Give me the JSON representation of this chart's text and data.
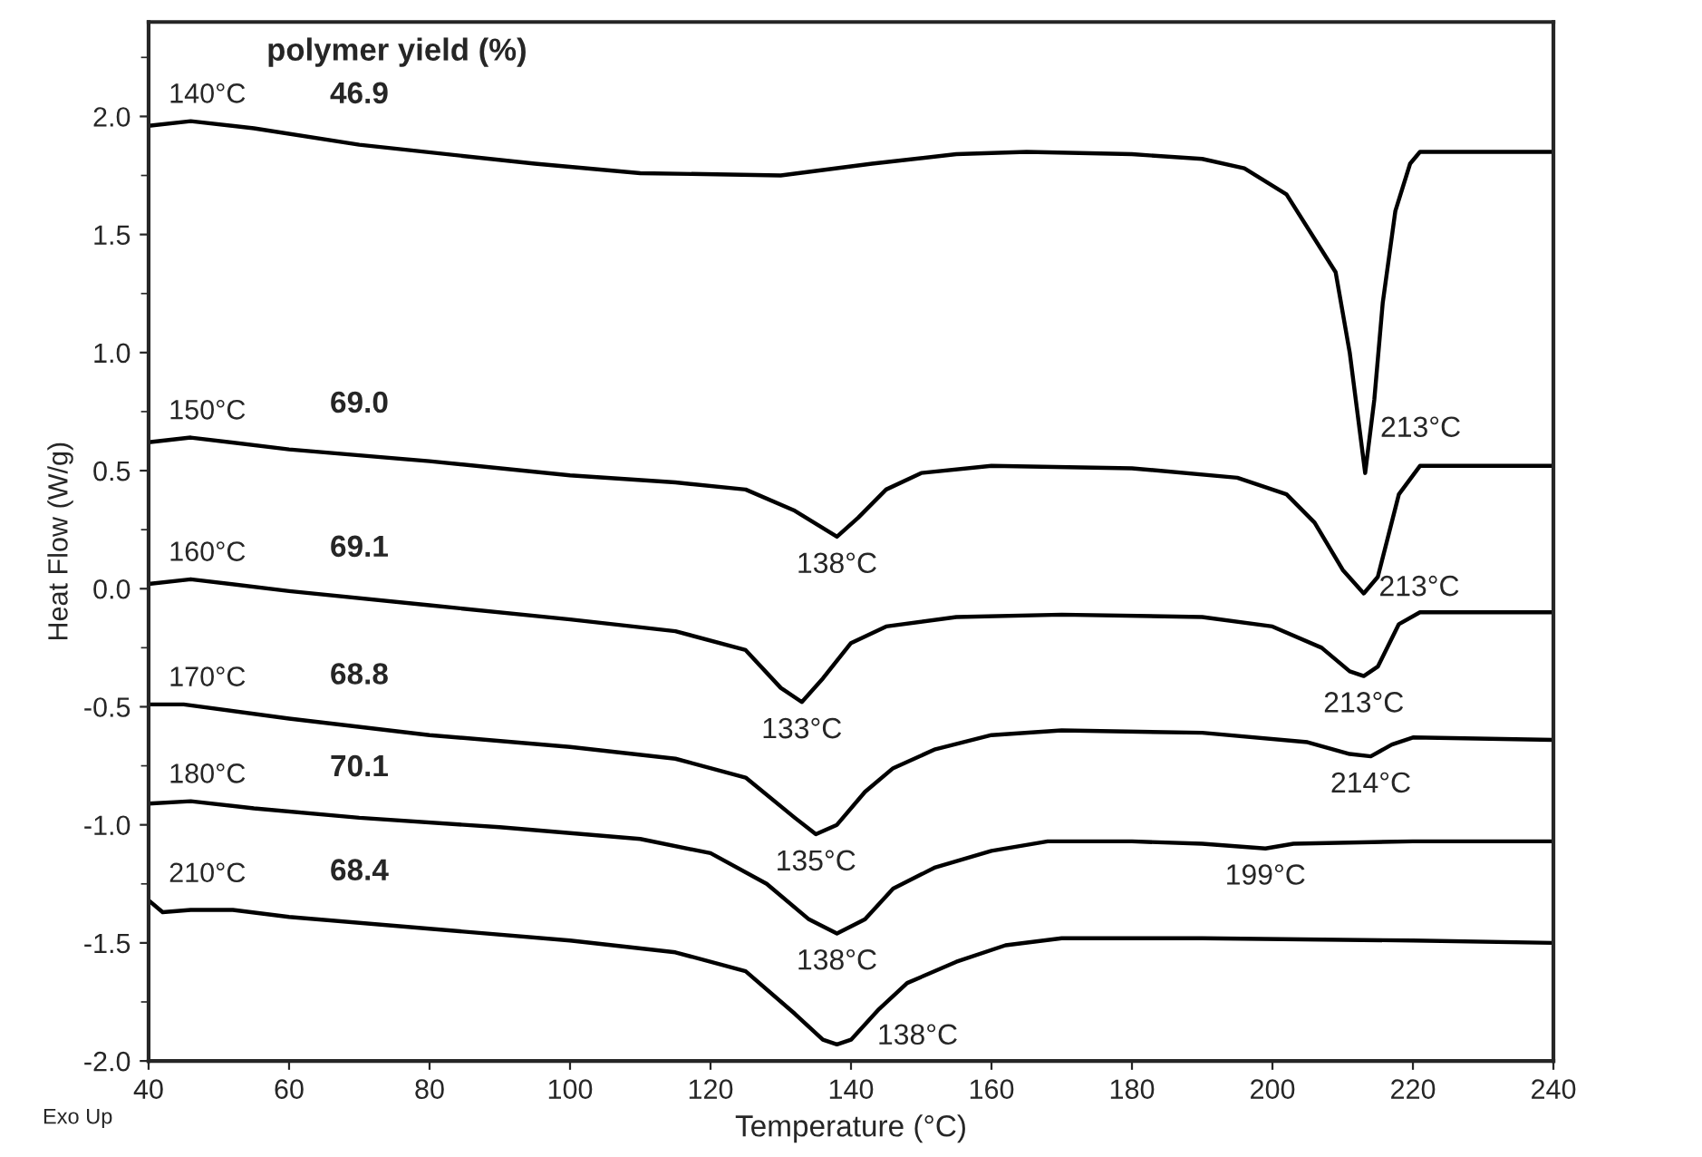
{
  "chart_data": {
    "type": "line",
    "xlabel": "Temperature (°C)",
    "ylabel": "Heat Flow (W/g)",
    "xlim": [
      40,
      240
    ],
    "xticks": [
      40,
      60,
      80,
      100,
      120,
      140,
      160,
      180,
      200,
      220,
      240
    ],
    "ylim": [
      -2.0,
      2.4
    ],
    "yticks": [
      {
        "value": -2.0,
        "label": "-2.0"
      },
      {
        "value": -1.5,
        "label": "-1.5"
      },
      {
        "value": -1.0,
        "label": "-1.0"
      },
      {
        "value": -0.5,
        "label": "-0.5"
      },
      {
        "value": 0.0,
        "label": "0.0"
      },
      {
        "value": 0.5,
        "label": "0.5"
      },
      {
        "value": 1.0,
        "label": "1.0"
      },
      {
        "value": 1.5,
        "label": "1.5"
      },
      {
        "value": 2.0,
        "label": "2.0"
      }
    ],
    "grid": false,
    "legend": false,
    "marker": "none",
    "line_style": "solid",
    "series": [
      {
        "name": "140°C",
        "color": "#000000",
        "x": [
          40,
          46,
          55,
          70,
          95,
          110,
          130,
          143,
          155,
          165,
          180,
          190,
          196,
          202,
          209,
          211,
          213.2,
          214.5,
          215.7,
          217.5,
          219.6,
          221,
          230,
          240
        ],
        "values": [
          1.96,
          1.98,
          1.95,
          1.88,
          1.8,
          1.76,
          1.75,
          1.8,
          1.84,
          1.85,
          1.84,
          1.82,
          1.78,
          1.67,
          1.34,
          1.0,
          0.49,
          0.8,
          1.21,
          1.6,
          1.8,
          1.85,
          1.85,
          1.85
        ]
      },
      {
        "name": "150°C",
        "color": "#000000",
        "x": [
          40,
          46,
          60,
          80,
          100,
          115,
          125,
          132,
          138,
          141,
          145,
          150,
          160,
          180,
          195,
          202,
          206,
          210,
          213,
          215,
          218,
          221,
          240
        ],
        "values": [
          0.62,
          0.64,
          0.59,
          0.54,
          0.48,
          0.45,
          0.42,
          0.33,
          0.22,
          0.3,
          0.42,
          0.49,
          0.52,
          0.51,
          0.47,
          0.4,
          0.28,
          0.08,
          -0.02,
          0.05,
          0.4,
          0.52,
          0.52
        ]
      },
      {
        "name": "160°C",
        "color": "#000000",
        "x": [
          40,
          46,
          60,
          80,
          100,
          115,
          125,
          130,
          133,
          136,
          140,
          145,
          155,
          170,
          190,
          200,
          207,
          211,
          213,
          215,
          218,
          221,
          240
        ],
        "values": [
          0.02,
          0.04,
          -0.01,
          -0.07,
          -0.13,
          -0.18,
          -0.26,
          -0.42,
          -0.48,
          -0.38,
          -0.23,
          -0.16,
          -0.12,
          -0.11,
          -0.12,
          -0.16,
          -0.25,
          -0.35,
          -0.37,
          -0.33,
          -0.15,
          -0.1,
          -0.1
        ]
      },
      {
        "name": "170°C",
        "color": "#000000",
        "x": [
          40,
          45,
          60,
          80,
          100,
          115,
          125,
          132,
          135,
          138,
          142,
          146,
          152,
          160,
          170,
          190,
          205,
          211,
          214,
          217,
          220,
          240
        ],
        "values": [
          -0.49,
          -0.49,
          -0.55,
          -0.62,
          -0.67,
          -0.72,
          -0.8,
          -0.97,
          -1.04,
          -1.0,
          -0.86,
          -0.76,
          -0.68,
          -0.62,
          -0.6,
          -0.61,
          -0.65,
          -0.7,
          -0.71,
          -0.66,
          -0.63,
          -0.64
        ]
      },
      {
        "name": "180°C",
        "color": "#000000",
        "x": [
          40,
          46,
          55,
          70,
          90,
          110,
          120,
          128,
          134,
          138,
          142,
          146,
          152,
          160,
          168,
          180,
          190,
          199,
          203,
          220,
          240
        ],
        "values": [
          -0.91,
          -0.9,
          -0.93,
          -0.97,
          -1.01,
          -1.06,
          -1.12,
          -1.25,
          -1.4,
          -1.46,
          -1.4,
          -1.27,
          -1.18,
          -1.11,
          -1.07,
          -1.07,
          -1.08,
          -1.1,
          -1.08,
          -1.07,
          -1.07
        ]
      },
      {
        "name": "210°C",
        "color": "#000000",
        "x": [
          40,
          42,
          46,
          52,
          60,
          80,
          100,
          115,
          125,
          132,
          136,
          138,
          140,
          144,
          148,
          155,
          162,
          170,
          190,
          220,
          240
        ],
        "values": [
          -1.32,
          -1.37,
          -1.36,
          -1.36,
          -1.39,
          -1.44,
          -1.49,
          -1.54,
          -1.62,
          -1.8,
          -1.91,
          -1.93,
          -1.91,
          -1.78,
          -1.67,
          -1.58,
          -1.51,
          -1.48,
          -1.48,
          -1.49,
          -1.5
        ]
      }
    ],
    "annotations": [
      "polymer yield (%)",
      "Exo Up",
      {
        "text": "46.9",
        "x": 70,
        "y": 1.88
      },
      {
        "text": "69.0",
        "x": 70,
        "y": 0.57
      },
      {
        "text": "69.1",
        "x": 70,
        "y": -0.04
      },
      {
        "text": "68.8",
        "x": 70,
        "y": -0.58
      },
      {
        "text": "70.1",
        "x": 70,
        "y": -0.97
      },
      {
        "text": "68.4",
        "x": 70,
        "y": -1.41
      },
      {
        "text": "213°C",
        "x": 213.2,
        "y": 0.49
      },
      {
        "text": "138°C",
        "x": 138,
        "y": 0.22
      },
      {
        "text": "213°C",
        "x": 213,
        "y": -0.02
      },
      {
        "text": "133°C",
        "x": 133,
        "y": -0.48
      },
      {
        "text": "213°C",
        "x": 213,
        "y": -0.37
      },
      {
        "text": "214°C",
        "x": 214,
        "y": -0.71
      },
      {
        "text": "135°C",
        "x": 135,
        "y": -1.04
      },
      {
        "text": "199°C",
        "x": 199,
        "y": -1.1
      },
      {
        "text": "138°C",
        "x": 138,
        "y": -1.46
      },
      {
        "text": "138°C",
        "x": 138,
        "y": -1.93
      }
    ]
  }
}
